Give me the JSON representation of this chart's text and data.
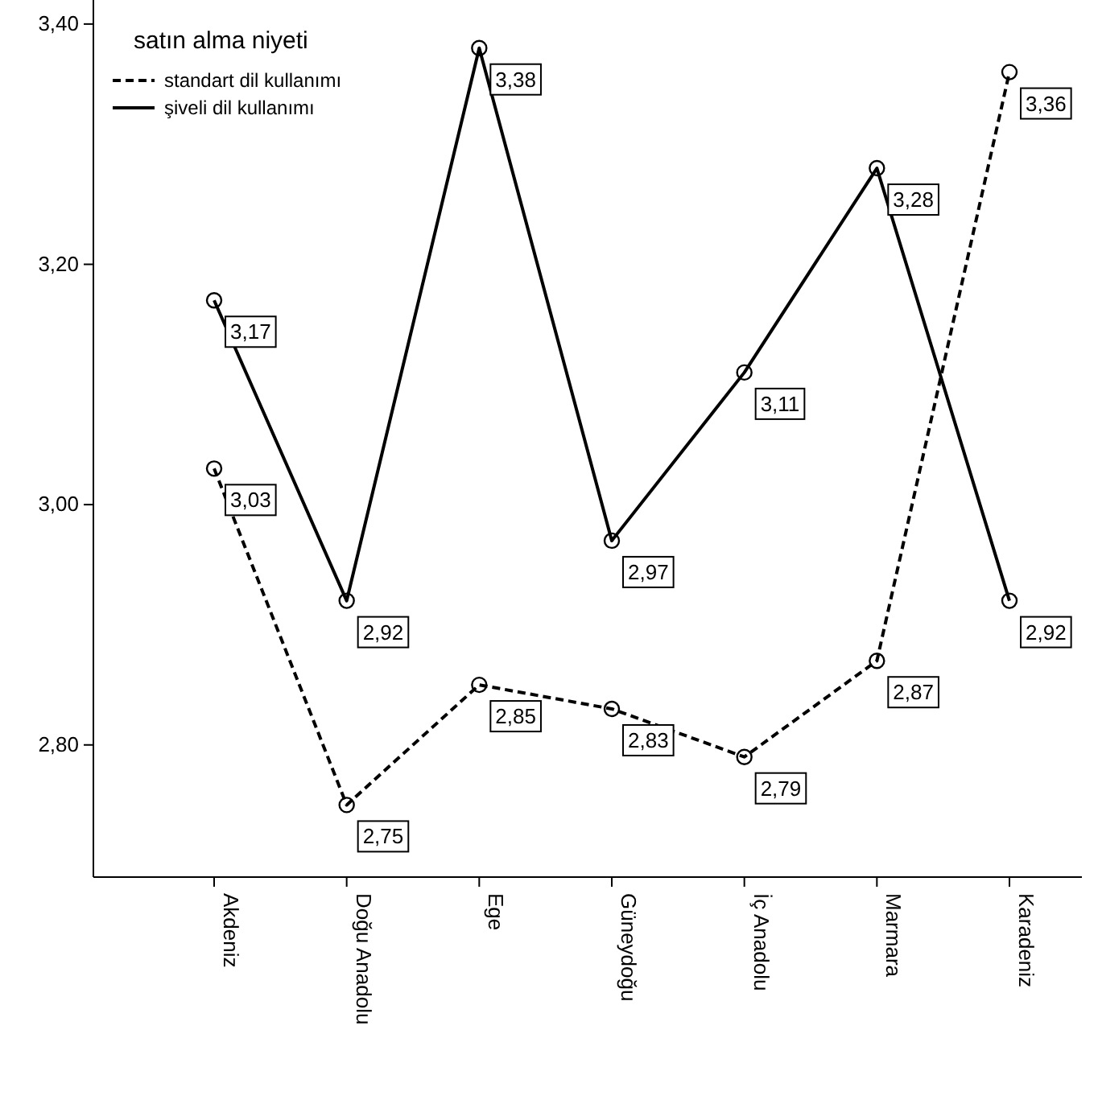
{
  "chart_data": {
    "type": "line",
    "legend_title": "satın alma niyeti",
    "categories": [
      "Akdeniz",
      "Doğu Anadolu",
      "Ege",
      "Güneydoğu",
      "İç Anadolu",
      "Marmara",
      "Karadeniz"
    ],
    "series": [
      {
        "name": "standart dil kullanımı",
        "color": "#000000",
        "line_style": "dashed",
        "values": [
          3.03,
          2.75,
          2.85,
          2.83,
          2.79,
          2.87,
          3.36
        ],
        "value_labels": [
          "3,03",
          "2,75",
          "2,85",
          "2,83",
          "2,79",
          "2,87",
          "3,36"
        ]
      },
      {
        "name": "şiveli dil kullanımı",
        "color": "#000000",
        "line_style": "solid",
        "values": [
          3.17,
          2.92,
          3.38,
          2.97,
          3.11,
          3.28,
          2.92
        ],
        "value_labels": [
          "3,17",
          "2,92",
          "3,38",
          "2,97",
          "3,11",
          "3,28",
          "2,92"
        ]
      }
    ],
    "ylim": [
      2.69,
      3.42
    ],
    "yticks": [
      {
        "value": 2.8,
        "label": "2,80"
      },
      {
        "value": 3.0,
        "label": "3,00"
      },
      {
        "value": 3.2,
        "label": "3,20"
      },
      {
        "value": 3.4,
        "label": "3,40"
      }
    ],
    "marker": "circle",
    "legend": "top left",
    "grid": false
  }
}
